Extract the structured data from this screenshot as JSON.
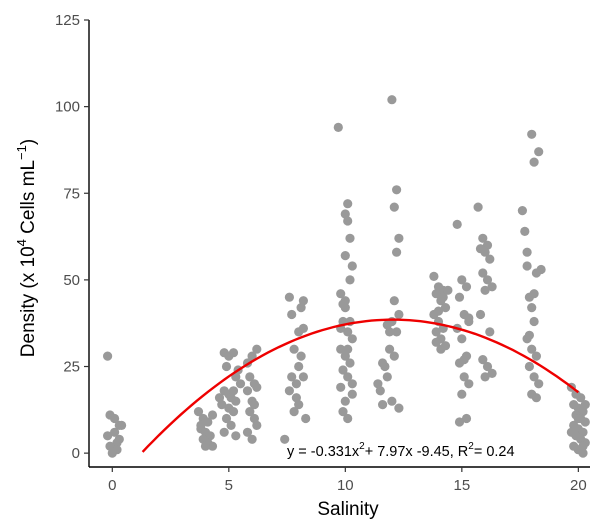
{
  "chart_data": {
    "type": "scatter",
    "xlabel": "Salinity",
    "ylabel": {
      "prefix": "Density  (x 10",
      "exp1": "4",
      "middle": " Cells  mL",
      "exp2": "−1",
      "suffix": ")"
    },
    "xlim": [
      -1,
      20.5
    ],
    "ylim": [
      -4,
      125
    ],
    "xticks": [
      0,
      5,
      10,
      15,
      20
    ],
    "yticks": [
      0,
      25,
      50,
      75,
      100,
      125
    ],
    "grid": false,
    "legend": "none",
    "colors": {
      "points": "#999999",
      "fit_line": "#ee0000",
      "axis": "#000000"
    },
    "fit": {
      "type": "quadratic",
      "a": -0.331,
      "b": 7.97,
      "c": -9.45,
      "x_range": [
        1.3,
        20
      ]
    },
    "annotation": {
      "y_part": "y = -0.331x",
      "sup1": "2",
      "mid": "+ 7.97x -9.45, R",
      "sup2": "2",
      "tail": "= 0.24"
    },
    "points": [
      [
        -0.2,
        28
      ],
      [
        -0.1,
        11
      ],
      [
        0.1,
        10
      ],
      [
        0.3,
        8
      ],
      [
        0.1,
        6
      ],
      [
        -0.2,
        5
      ],
      [
        0.2,
        3
      ],
      [
        -0.1,
        2
      ],
      [
        0.2,
        1
      ],
      [
        0.0,
        0
      ],
      [
        0.4,
        8
      ],
      [
        0.3,
        4
      ],
      [
        3.7,
        12
      ],
      [
        3.9,
        10
      ],
      [
        4.1,
        9
      ],
      [
        4.3,
        11
      ],
      [
        3.8,
        7
      ],
      [
        4.0,
        6
      ],
      [
        4.2,
        5
      ],
      [
        3.9,
        4
      ],
      [
        4.1,
        3
      ],
      [
        4.3,
        2
      ],
      [
        4.0,
        2
      ],
      [
        3.8,
        8
      ],
      [
        4.8,
        29
      ],
      [
        5.0,
        28
      ],
      [
        5.2,
        29
      ],
      [
        4.9,
        25
      ],
      [
        5.3,
        22
      ],
      [
        4.8,
        18
      ],
      [
        5.0,
        17
      ],
      [
        5.1,
        16
      ],
      [
        5.3,
        15
      ],
      [
        4.7,
        14
      ],
      [
        5.0,
        13
      ],
      [
        5.2,
        12
      ],
      [
        4.9,
        10
      ],
      [
        5.1,
        8
      ],
      [
        4.8,
        6
      ],
      [
        5.3,
        5
      ],
      [
        5.5,
        20
      ],
      [
        4.6,
        16
      ],
      [
        5.4,
        24
      ],
      [
        5.2,
        18
      ],
      [
        5.8,
        26
      ],
      [
        6.0,
        28
      ],
      [
        6.2,
        30
      ],
      [
        6.1,
        20
      ],
      [
        5.8,
        18
      ],
      [
        6.2,
        19
      ],
      [
        6.0,
        15
      ],
      [
        5.9,
        12
      ],
      [
        6.1,
        10
      ],
      [
        6.2,
        8
      ],
      [
        5.8,
        6
      ],
      [
        6.0,
        4
      ],
      [
        6.1,
        14
      ],
      [
        5.9,
        22
      ],
      [
        7.4,
        4
      ],
      [
        7.6,
        45
      ],
      [
        7.7,
        40
      ],
      [
        7.8,
        30
      ],
      [
        7.7,
        22
      ],
      [
        7.9,
        20
      ],
      [
        7.6,
        18
      ],
      [
        8.0,
        25
      ],
      [
        8.0,
        35
      ],
      [
        8.2,
        44
      ],
      [
        8.1,
        42
      ],
      [
        8.2,
        36
      ],
      [
        8.1,
        28
      ],
      [
        8.0,
        14
      ],
      [
        8.3,
        10
      ],
      [
        7.9,
        16
      ],
      [
        8.2,
        22
      ],
      [
        7.8,
        12
      ],
      [
        9.7,
        94
      ],
      [
        9.8,
        46
      ],
      [
        9.9,
        43
      ],
      [
        10.0,
        42
      ],
      [
        10.1,
        72
      ],
      [
        10.0,
        69
      ],
      [
        10.1,
        67
      ],
      [
        10.2,
        62
      ],
      [
        10.0,
        57
      ],
      [
        10.3,
        54
      ],
      [
        10.2,
        50
      ],
      [
        9.9,
        38
      ],
      [
        10.1,
        35
      ],
      [
        10.3,
        33
      ],
      [
        9.8,
        30
      ],
      [
        10.0,
        28
      ],
      [
        10.2,
        26
      ],
      [
        9.9,
        24
      ],
      [
        10.1,
        22
      ],
      [
        9.8,
        19
      ],
      [
        10.3,
        17
      ],
      [
        10.0,
        15
      ],
      [
        9.9,
        12
      ],
      [
        10.1,
        10
      ],
      [
        10.2,
        38
      ],
      [
        10.0,
        44
      ],
      [
        9.8,
        36
      ],
      [
        10.3,
        20
      ],
      [
        10.1,
        30
      ],
      [
        11.4,
        20
      ],
      [
        11.6,
        14
      ],
      [
        11.5,
        18
      ],
      [
        11.7,
        25
      ],
      [
        11.6,
        26
      ],
      [
        11.9,
        35
      ],
      [
        11.8,
        37
      ],
      [
        12.0,
        102
      ],
      [
        12.2,
        76
      ],
      [
        12.1,
        71
      ],
      [
        12.3,
        62
      ],
      [
        12.2,
        58
      ],
      [
        12.1,
        44
      ],
      [
        12.3,
        40
      ],
      [
        12.0,
        38
      ],
      [
        12.2,
        35
      ],
      [
        11.9,
        30
      ],
      [
        12.1,
        28
      ],
      [
        12.3,
        13
      ],
      [
        12.0,
        15
      ],
      [
        11.8,
        22
      ],
      [
        13.8,
        51
      ],
      [
        14.0,
        48
      ],
      [
        14.2,
        47
      ],
      [
        13.9,
        46
      ],
      [
        14.1,
        44
      ],
      [
        14.3,
        42
      ],
      [
        13.8,
        40
      ],
      [
        14.0,
        38
      ],
      [
        14.2,
        36
      ],
      [
        13.9,
        35
      ],
      [
        14.1,
        33
      ],
      [
        14.3,
        31
      ],
      [
        14.0,
        41
      ],
      [
        14.2,
        45
      ],
      [
        14.4,
        47
      ],
      [
        14.1,
        30
      ],
      [
        13.9,
        32
      ],
      [
        14.8,
        66
      ],
      [
        15.0,
        50
      ],
      [
        15.2,
        48
      ],
      [
        14.9,
        45
      ],
      [
        15.1,
        40
      ],
      [
        15.3,
        38
      ],
      [
        14.8,
        36
      ],
      [
        15.0,
        33
      ],
      [
        15.2,
        28
      ],
      [
        14.9,
        26
      ],
      [
        15.1,
        22
      ],
      [
        15.3,
        20
      ],
      [
        15.0,
        17
      ],
      [
        15.2,
        10
      ],
      [
        14.9,
        9
      ],
      [
        15.3,
        39
      ],
      [
        15.1,
        27
      ],
      [
        15.7,
        71
      ],
      [
        15.9,
        62
      ],
      [
        16.1,
        60
      ],
      [
        15.8,
        59
      ],
      [
        16.0,
        58
      ],
      [
        16.2,
        56
      ],
      [
        15.9,
        52
      ],
      [
        16.1,
        50
      ],
      [
        16.3,
        48
      ],
      [
        16.0,
        47
      ],
      [
        15.8,
        40
      ],
      [
        16.2,
        35
      ],
      [
        15.9,
        27
      ],
      [
        16.1,
        25
      ],
      [
        16.3,
        23
      ],
      [
        16.0,
        22
      ],
      [
        17.6,
        70
      ],
      [
        17.7,
        64
      ],
      [
        17.8,
        54
      ],
      [
        17.9,
        45
      ],
      [
        18.0,
        42
      ],
      [
        18.1,
        38
      ],
      [
        17.8,
        33
      ],
      [
        18.0,
        30
      ],
      [
        18.2,
        28
      ],
      [
        17.9,
        25
      ],
      [
        18.1,
        22
      ],
      [
        18.3,
        20
      ],
      [
        18.0,
        17
      ],
      [
        18.2,
        16
      ],
      [
        18.0,
        92
      ],
      [
        18.3,
        87
      ],
      [
        18.1,
        84
      ],
      [
        18.4,
        53
      ],
      [
        18.2,
        52
      ],
      [
        17.8,
        58
      ],
      [
        18.1,
        46
      ],
      [
        17.9,
        34
      ],
      [
        19.7,
        19
      ],
      [
        19.9,
        17
      ],
      [
        20.1,
        16
      ],
      [
        19.8,
        14
      ],
      [
        20.0,
        13
      ],
      [
        20.2,
        12
      ],
      [
        19.9,
        11
      ],
      [
        20.1,
        10
      ],
      [
        20.3,
        9
      ],
      [
        19.8,
        8
      ],
      [
        20.0,
        7
      ],
      [
        20.2,
        6
      ],
      [
        19.9,
        5
      ],
      [
        20.1,
        4
      ],
      [
        20.3,
        3
      ],
      [
        19.8,
        2
      ],
      [
        20.0,
        1
      ],
      [
        20.2,
        0
      ],
      [
        20.3,
        14
      ],
      [
        19.7,
        6
      ],
      [
        20.0,
        10
      ],
      [
        20.2,
        2
      ]
    ]
  }
}
